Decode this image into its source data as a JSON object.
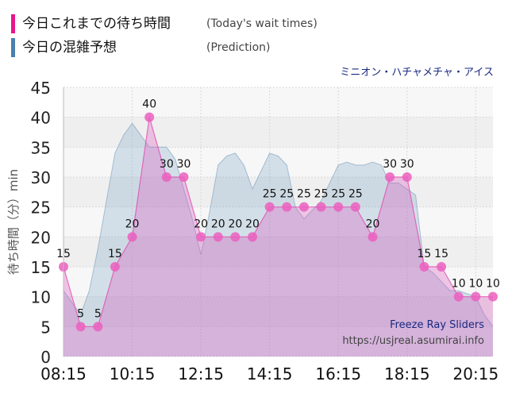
{
  "legend": {
    "wait_times_jp": "今日これまでの待ち時間",
    "wait_times_en": "(Today's wait times)",
    "prediction_jp": "今日の混雑予想",
    "prediction_en": "(Prediction)",
    "wait_times_color": "#e8168c",
    "prediction_color": "#4a7fb0"
  },
  "ride_name": "ミニオン・ハチャメチャ・アイス",
  "annotation": {
    "title": "Freeze Ray Sliders",
    "url": "https://usjreal.asumirai.info"
  },
  "chart_data": {
    "type": "area",
    "ylabel": "待ち時間（分）min",
    "xlabel": "",
    "ylim": [
      0,
      45
    ],
    "yticks": [
      0,
      5,
      10,
      15,
      20,
      25,
      30,
      35,
      40,
      45
    ],
    "xticks": [
      "08:15",
      "10:15",
      "12:15",
      "14:15",
      "16:15",
      "18:15",
      "20:15"
    ],
    "grid": true,
    "series": [
      {
        "name": "今日これまでの待ち時間",
        "x": [
          "08:15",
          "08:45",
          "09:15",
          "09:45",
          "10:15",
          "10:45",
          "11:15",
          "11:45",
          "12:15",
          "12:45",
          "13:15",
          "13:45",
          "14:15",
          "14:45",
          "15:15",
          "15:45",
          "16:15",
          "16:45",
          "17:15",
          "17:45",
          "18:15",
          "18:45",
          "19:15",
          "19:45",
          "20:15",
          "20:45"
        ],
        "values": [
          15,
          5,
          5,
          15,
          20,
          40,
          30,
          30,
          20,
          20,
          20,
          20,
          25,
          25,
          25,
          25,
          25,
          25,
          20,
          30,
          30,
          15,
          15,
          10,
          10,
          10
        ],
        "data_labels": true
      },
      {
        "name": "今日の混雑予想",
        "x": [
          "08:15",
          "08:30",
          "08:45",
          "09:00",
          "09:15",
          "09:30",
          "09:45",
          "10:00",
          "10:15",
          "10:30",
          "10:45",
          "11:00",
          "11:15",
          "11:30",
          "11:45",
          "12:00",
          "12:15",
          "12:30",
          "12:45",
          "13:00",
          "13:15",
          "13:30",
          "13:45",
          "14:00",
          "14:15",
          "14:30",
          "14:45",
          "15:00",
          "15:15",
          "15:30",
          "15:45",
          "16:00",
          "16:15",
          "16:30",
          "16:45",
          "17:00",
          "17:15",
          "17:30",
          "17:45",
          "18:00",
          "18:15",
          "18:30",
          "18:45",
          "19:00",
          "19:15",
          "19:30",
          "19:45",
          "20:00",
          "20:15",
          "20:30",
          "20:45"
        ],
        "values": [
          11,
          9,
          7,
          11,
          18,
          26,
          34,
          37,
          39,
          37,
          35,
          35,
          35,
          33,
          28,
          23,
          17,
          24,
          32,
          33.5,
          34,
          32,
          28,
          31,
          34,
          33.5,
          32,
          25,
          23,
          24.5,
          26,
          29,
          32,
          32.5,
          32,
          32,
          32.5,
          32,
          29,
          29,
          28,
          27,
          15,
          14,
          12.5,
          11,
          11,
          10.5,
          10,
          7,
          5
        ]
      }
    ]
  }
}
